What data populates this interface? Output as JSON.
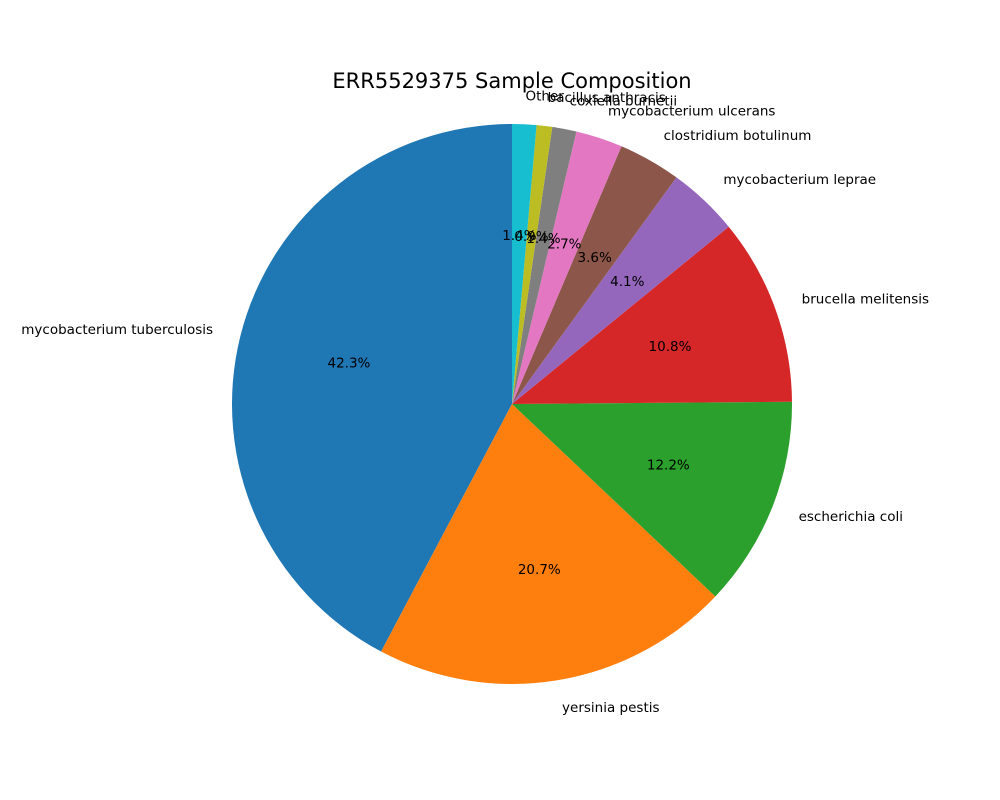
{
  "chart_data": {
    "type": "pie",
    "title": "ERR5529375 Sample Composition",
    "start_angle_deg": 90,
    "direction": "counterclockwise",
    "slices": [
      {
        "label": "mycobacterium tuberculosis",
        "value": 42.3,
        "pct_label": "42.3%",
        "color": "#1f77b4"
      },
      {
        "label": "yersinia pestis",
        "value": 20.7,
        "pct_label": "20.7%",
        "color": "#ff7f0e"
      },
      {
        "label": "escherichia coli",
        "value": 12.2,
        "pct_label": "12.2%",
        "color": "#2ca02c"
      },
      {
        "label": "brucella melitensis",
        "value": 10.8,
        "pct_label": "10.8%",
        "color": "#d62728"
      },
      {
        "label": "mycobacterium leprae",
        "value": 4.1,
        "pct_label": "4.1%",
        "color": "#9467bd"
      },
      {
        "label": "clostridium botulinum",
        "value": 3.6,
        "pct_label": "3.6%",
        "color": "#8c564b"
      },
      {
        "label": "mycobacterium ulcerans",
        "value": 2.7,
        "pct_label": "2.7%",
        "color": "#e377c2"
      },
      {
        "label": "coxiella burnetii",
        "value": 1.4,
        "pct_label": "1.4%",
        "color": "#7f7f7f"
      },
      {
        "label": "bacillus anthracis",
        "value": 0.9,
        "pct_label": "0.9%",
        "color": "#bcbd22"
      },
      {
        "label": "Other",
        "value": 1.4,
        "pct_label": "1.4%",
        "color": "#17becf"
      }
    ]
  }
}
